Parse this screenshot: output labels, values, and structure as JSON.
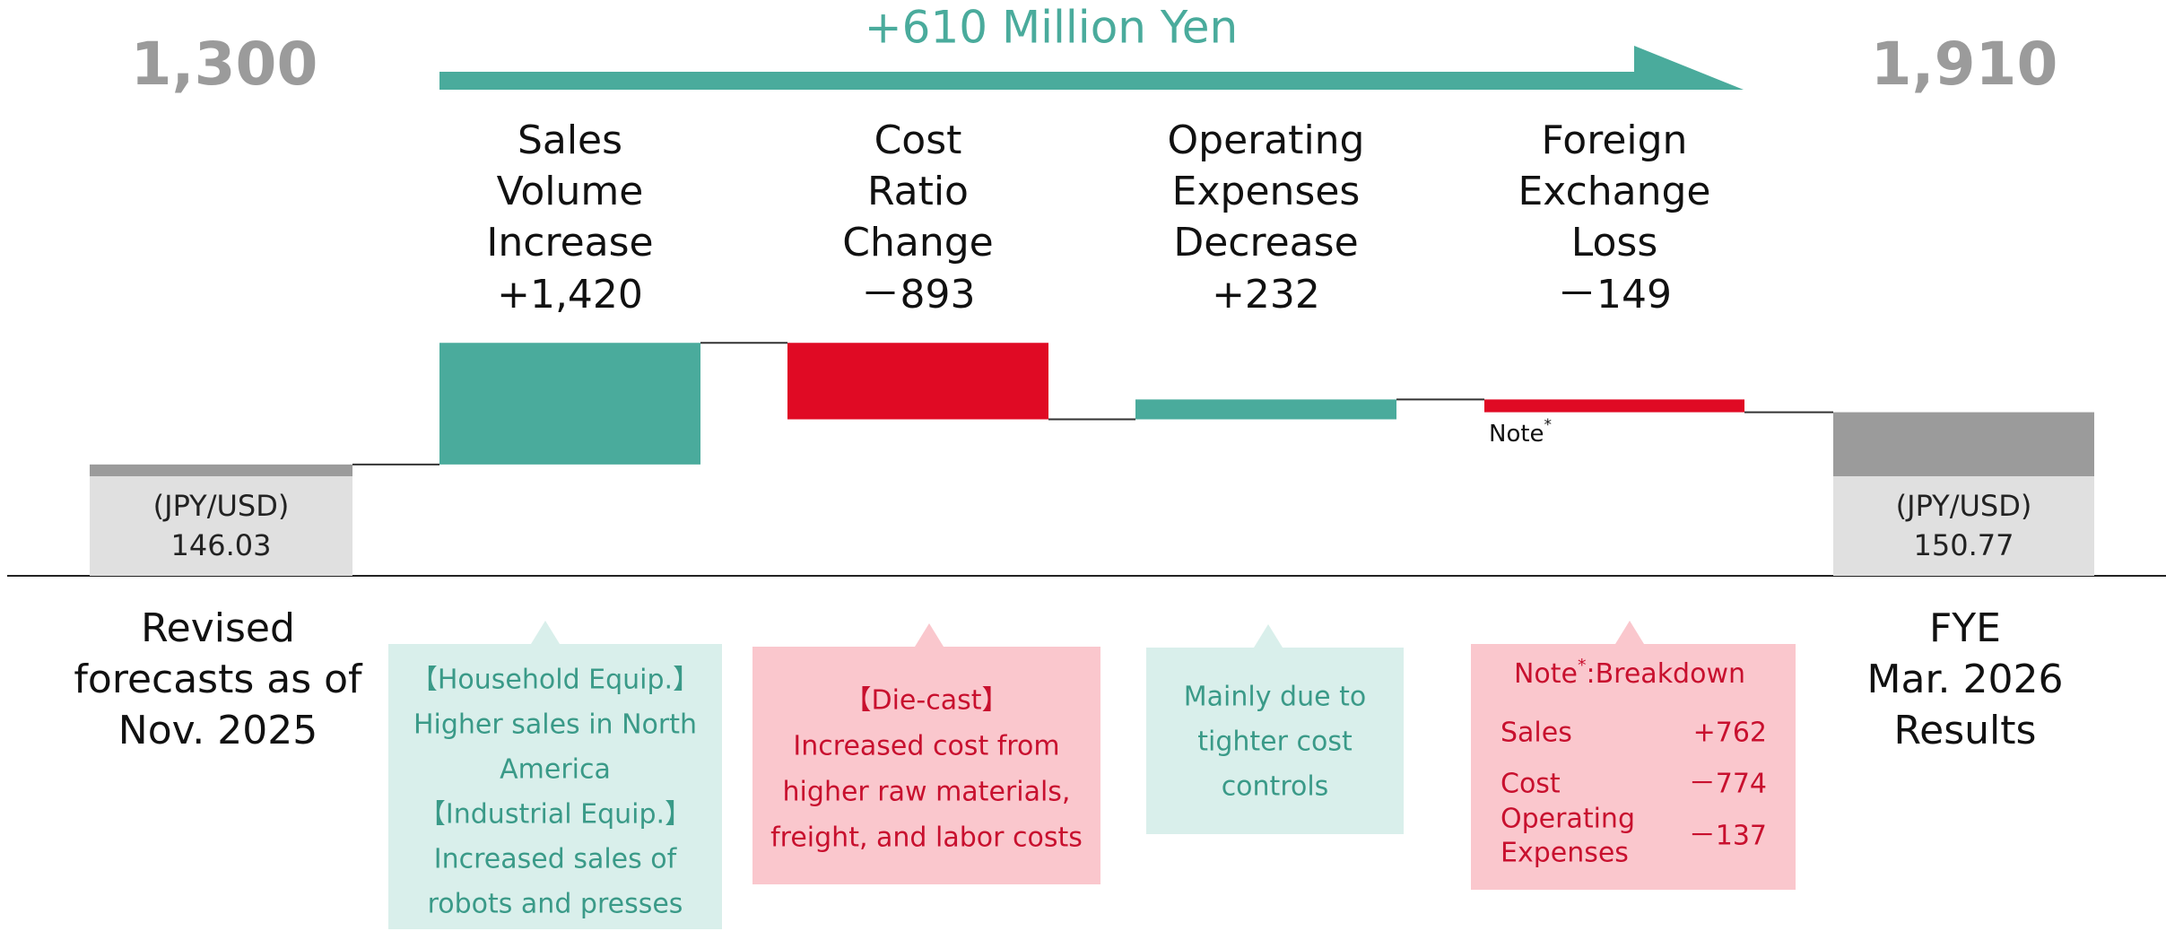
{
  "chart_data": {
    "type": "waterfall",
    "title": "+610  Million Yen",
    "increase_color": "#4aab9c",
    "decrease_color": "#e00a24",
    "total_color": "#9b9b9b",
    "total_base_color": "#e0e0e0",
    "totals": [
      {
        "value": 1300,
        "value_label": "1,300",
        "label": [
          "Revised",
          "forecasts as of",
          "Nov. 2025"
        ],
        "rate_label": "(JPY/USD)",
        "rate": 146.03
      },
      {
        "value": 1910,
        "value_label": "1,910",
        "label": [
          "FYE",
          "Mar. 2026",
          "Results"
        ],
        "rate_label": "(JPY/USD)",
        "rate": 150.77
      }
    ],
    "categories": [
      [
        "Sales",
        "Volume",
        "Increase"
      ],
      [
        "Cost",
        "Ratio",
        "Change"
      ],
      [
        "Operating",
        "Expenses",
        "Decrease"
      ],
      [
        "Foreign",
        "Exchange",
        "Loss"
      ]
    ],
    "values": [
      1420,
      -893,
      232,
      -149
    ],
    "value_labels": [
      "+1,420",
      "－893",
      "+232",
      "－149"
    ],
    "note": {
      "text": "Note",
      "sup": "*"
    },
    "callouts": [
      [
        "【Household Equip.】",
        "Higher sales in North",
        "America",
        "【Industrial Equip.】",
        "Increased sales of",
        "robots and presses"
      ],
      [
        "【Die-cast】",
        "Increased cost from",
        "higher raw materials,",
        "freight, and labor costs"
      ],
      [
        "Mainly due to",
        "tighter cost",
        "controls"
      ]
    ],
    "breakdown": {
      "title": {
        "text": "Note",
        "sup": "*",
        "rest": ":Breakdown"
      },
      "rows": [
        {
          "name": [
            "Sales"
          ],
          "value": "+762"
        },
        {
          "name": [
            "Cost"
          ],
          "value": "－774"
        },
        {
          "name": [
            "Operating",
            "Expenses"
          ],
          "value": "－137"
        }
      ]
    }
  }
}
